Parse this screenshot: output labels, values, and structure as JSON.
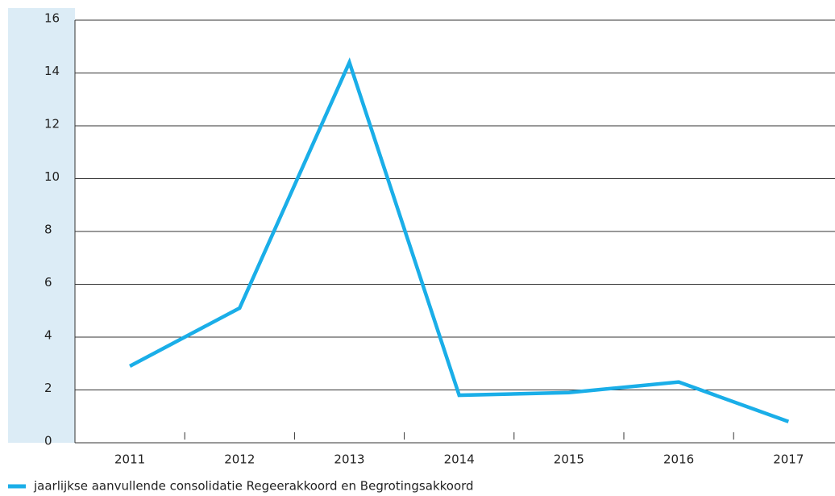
{
  "chart_data": {
    "type": "line",
    "categories": [
      "2011",
      "2012",
      "2013",
      "2014",
      "2015",
      "2016",
      "2017"
    ],
    "series": [
      {
        "name": "jaarlijkse aanvullende consolidatie Regeerakkoord en Begrotingsakkoord",
        "color": "#1aaee8",
        "values": [
          2.9,
          5.1,
          14.4,
          1.8,
          1.9,
          2.3,
          0.8
        ]
      }
    ],
    "ylim": [
      0,
      16
    ],
    "yticks": [
      0,
      2,
      4,
      6,
      8,
      10,
      12,
      14,
      16
    ],
    "grid": true,
    "legend": "bottom"
  }
}
